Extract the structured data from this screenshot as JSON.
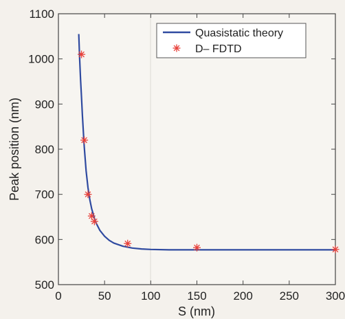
{
  "chart_data": {
    "type": "line",
    "title": "",
    "xlabel": "S (nm)",
    "ylabel": "Peak position (nm)",
    "xlim": [
      0,
      300
    ],
    "ylim": [
      500,
      1100
    ],
    "xticks": [
      0,
      50,
      100,
      150,
      200,
      250,
      300
    ],
    "yticks": [
      500,
      600,
      700,
      800,
      900,
      1000,
      1100
    ],
    "grid": false,
    "legend_position": "top-right",
    "series": [
      {
        "name": "Quasistatic theory",
        "style": "line",
        "color": "#2f4aa0",
        "x": [
          22,
          23,
          24,
          25,
          26,
          27,
          28,
          30,
          32,
          34,
          36,
          40,
          45,
          50,
          55,
          60,
          70,
          80,
          90,
          100,
          120,
          150,
          200,
          250,
          300
        ],
        "y": [
          1055,
          1000,
          955,
          915,
          875,
          838,
          805,
          752,
          715,
          688,
          668,
          640,
          620,
          607,
          598,
          592,
          585,
          581,
          579,
          578,
          577,
          577,
          577,
          577,
          577
        ]
      },
      {
        "name": "D– FDTD",
        "style": "marker",
        "marker": "asterisk",
        "color": "#e8403a",
        "x": [
          25,
          28,
          32,
          36,
          39,
          75,
          150,
          300
        ],
        "y": [
          1010,
          820,
          700,
          652,
          640,
          591,
          582,
          578
        ]
      }
    ]
  }
}
